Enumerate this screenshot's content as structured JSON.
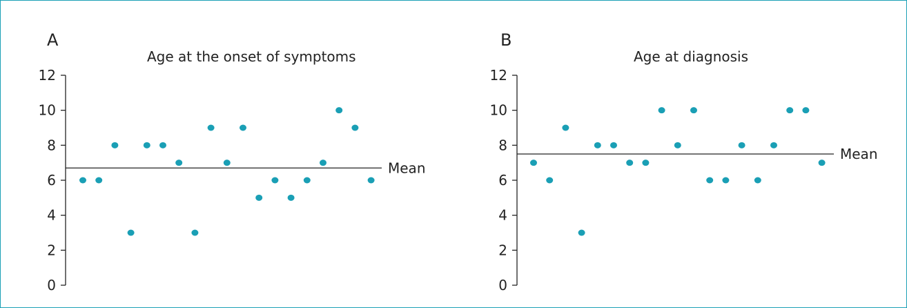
{
  "colors": {
    "point": "#1a9fb5",
    "axis": "#222222",
    "border": "#1a9fb5"
  },
  "chart_data": [
    {
      "type": "scatter",
      "panel": "A",
      "title": "Age at the onset of symptoms",
      "xlabel": "",
      "ylabel": "",
      "ylim": [
        0,
        12
      ],
      "yticks": [
        "0",
        "2",
        "4",
        "6",
        "8",
        "10",
        "12"
      ],
      "grid": false,
      "mean": 6.7,
      "mean_label": "Mean",
      "x": [
        1,
        2,
        3,
        4,
        5,
        6,
        7,
        8,
        9,
        10,
        11,
        12,
        13,
        14,
        15,
        16,
        17,
        18,
        19
      ],
      "values": [
        6,
        6,
        8,
        3,
        8,
        8,
        7,
        3,
        9,
        7,
        9,
        5,
        6,
        5,
        6,
        7,
        10,
        9,
        6
      ]
    },
    {
      "type": "scatter",
      "panel": "B",
      "title": "Age at diagnosis",
      "xlabel": "",
      "ylabel": "",
      "ylim": [
        0,
        12
      ],
      "yticks": [
        "0",
        "2",
        "4",
        "6",
        "8",
        "10",
        "12"
      ],
      "grid": false,
      "mean": 7.5,
      "mean_label": "Mean",
      "x": [
        1,
        2,
        3,
        4,
        5,
        6,
        7,
        8,
        9,
        10,
        11,
        12,
        13,
        14,
        15,
        16,
        17,
        18,
        19
      ],
      "values": [
        7,
        6,
        9,
        3,
        8,
        8,
        7,
        7,
        10,
        8,
        10,
        6,
        6,
        8,
        6,
        8,
        10,
        10,
        7
      ]
    }
  ]
}
